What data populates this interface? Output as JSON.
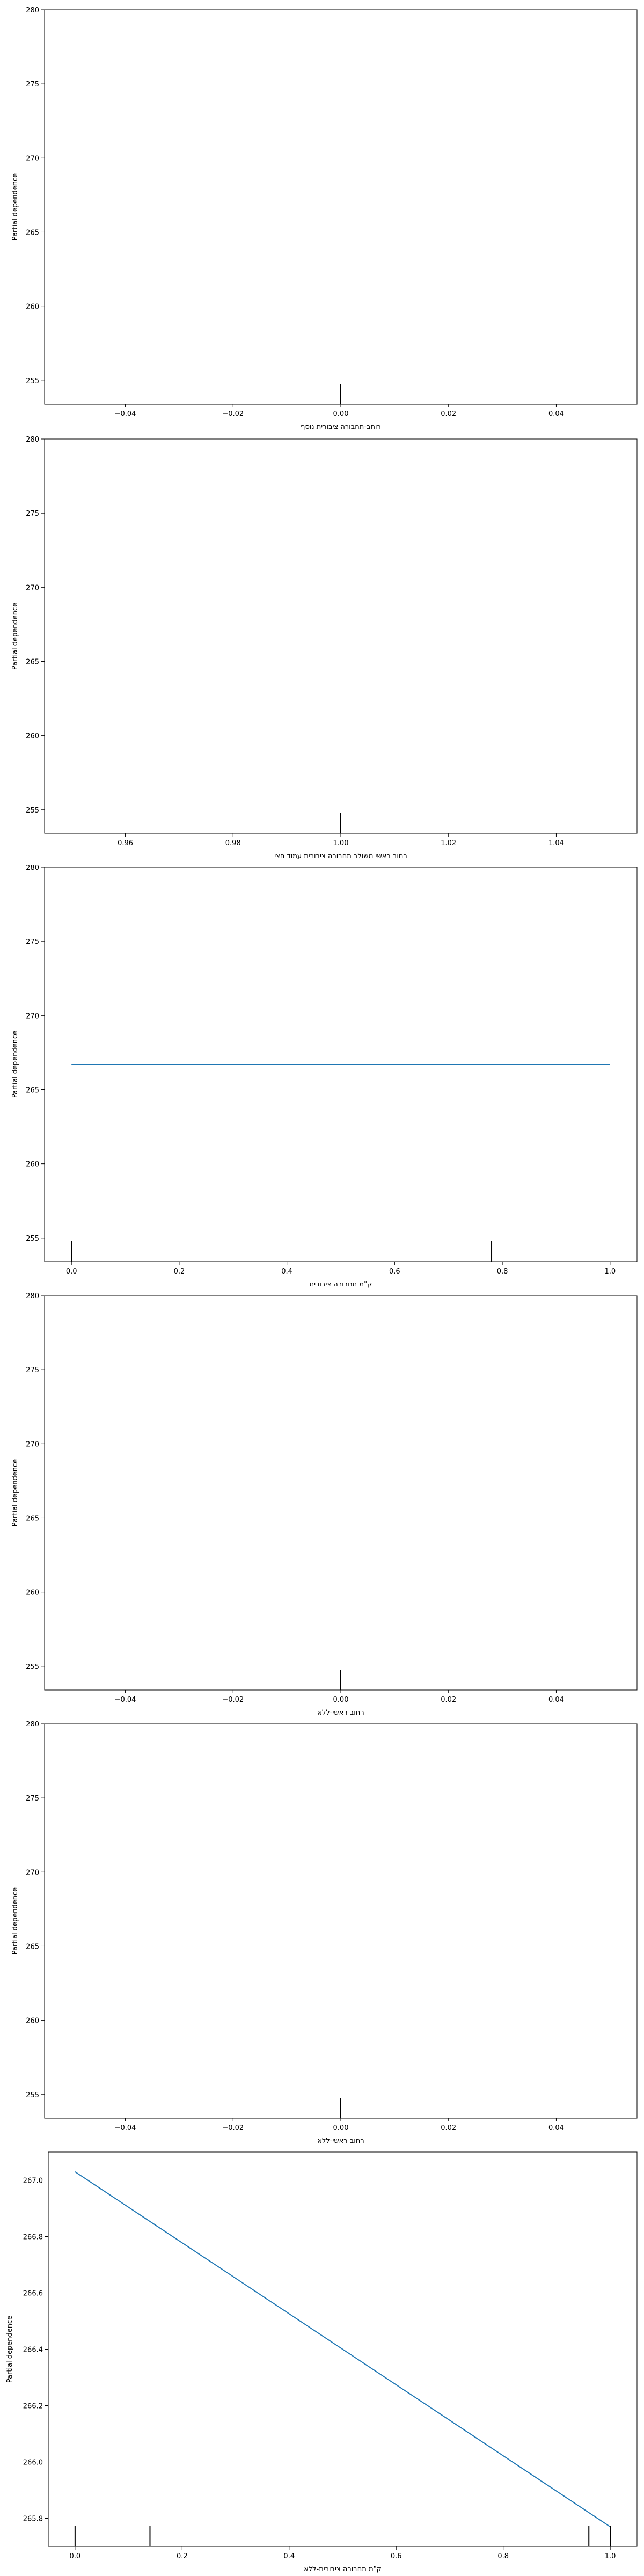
{
  "figure": {
    "background": "#ffffff",
    "line_color": "#1f77b4",
    "rug_color": "#000000"
  },
  "chart_data": [
    {
      "type": "line",
      "xlabel": "רוחב-תחבורה ציבורית נוסף",
      "ylabel": "Partial dependence",
      "xlim": [
        -0.055,
        0.055
      ],
      "ylim": [
        253.4,
        280
      ],
      "xticks": [
        -0.04,
        -0.02,
        0.0,
        0.02,
        0.04
      ],
      "xtick_labels": [
        "−0.04",
        "−0.02",
        "0.00",
        "0.02",
        "0.04"
      ],
      "yticks": [
        255,
        260,
        265,
        270,
        275,
        280
      ],
      "ytick_labels": [
        "255",
        "260",
        "265",
        "270",
        "275",
        "280"
      ],
      "series": [],
      "rug": [
        0.0
      ],
      "grid": false
    },
    {
      "type": "line",
      "xlabel": "רחוב ראשי משולב תחבורה ציבורית עמוד חצי",
      "ylabel": "Partial dependence",
      "xlim": [
        0.945,
        1.055
      ],
      "ylim": [
        253.4,
        280
      ],
      "xticks": [
        0.96,
        0.98,
        1.0,
        1.02,
        1.04
      ],
      "xtick_labels": [
        "0.96",
        "0.98",
        "1.00",
        "1.02",
        "1.04"
      ],
      "yticks": [
        255,
        260,
        265,
        270,
        275,
        280
      ],
      "ytick_labels": [
        "255",
        "260",
        "265",
        "270",
        "275",
        "280"
      ],
      "series": [],
      "rug": [
        1.0
      ],
      "grid": false
    },
    {
      "type": "line",
      "xlabel": "ק\"מ תחבורה ציבורית",
      "ylabel": "Partial dependence",
      "xlim": [
        -0.05,
        1.05
      ],
      "ylim": [
        253.4,
        280
      ],
      "xticks": [
        0.0,
        0.2,
        0.4,
        0.6,
        0.8,
        1.0
      ],
      "xtick_labels": [
        "0.0",
        "0.2",
        "0.4",
        "0.6",
        "0.8",
        "1.0"
      ],
      "yticks": [
        255,
        260,
        265,
        270,
        275,
        280
      ],
      "ytick_labels": [
        "255",
        "260",
        "265",
        "270",
        "275",
        "280"
      ],
      "series": [
        {
          "x": [
            0.0,
            1.0
          ],
          "y": [
            266.7,
            266.7
          ]
        }
      ],
      "rug": [
        0.0,
        0.78
      ],
      "grid": false
    },
    {
      "type": "line",
      "xlabel": "רחוב ראשי-ללא",
      "ylabel": "Partial dependence",
      "xlim": [
        -0.055,
        0.055
      ],
      "ylim": [
        253.4,
        280
      ],
      "xticks": [
        -0.04,
        -0.02,
        0.0,
        0.02,
        0.04
      ],
      "xtick_labels": [
        "−0.04",
        "−0.02",
        "0.00",
        "0.02",
        "0.04"
      ],
      "yticks": [
        255,
        260,
        265,
        270,
        275,
        280
      ],
      "ytick_labels": [
        "255",
        "260",
        "265",
        "270",
        "275",
        "280"
      ],
      "series": [],
      "rug": [
        0.0
      ],
      "grid": false
    },
    {
      "type": "line",
      "xlabel": "רחוב ראשי-ללא",
      "ylabel": "Partial dependence",
      "xlim": [
        -0.055,
        0.055
      ],
      "ylim": [
        253.4,
        280
      ],
      "xticks": [
        -0.04,
        -0.02,
        0.0,
        0.02,
        0.04
      ],
      "xtick_labels": [
        "−0.04",
        "−0.02",
        "0.00",
        "0.02",
        "0.04"
      ],
      "yticks": [
        255,
        260,
        265,
        270,
        275,
        280
      ],
      "ytick_labels": [
        "255",
        "260",
        "265",
        "270",
        "275",
        "280"
      ],
      "series": [],
      "rug": [
        0.0
      ],
      "grid": false
    },
    {
      "type": "line",
      "xlabel": "ק\"מ תחבורה ציבורית-ללא",
      "ylabel": "Partial dependence",
      "xlim": [
        -0.05,
        1.05
      ],
      "ylim": [
        265.7,
        267.1
      ],
      "xticks": [
        0.0,
        0.2,
        0.4,
        0.6,
        0.8,
        1.0
      ],
      "xtick_labels": [
        "0.0",
        "0.2",
        "0.4",
        "0.6",
        "0.8",
        "1.0"
      ],
      "yticks": [
        265.8,
        266.0,
        266.2,
        266.4,
        266.6,
        266.8,
        267.0
      ],
      "ytick_labels": [
        "265.8",
        "266.0",
        "266.2",
        "266.4",
        "266.6",
        "266.8",
        "267.0"
      ],
      "series": [
        {
          "x": [
            0.0,
            1.0
          ],
          "y": [
            267.03,
            265.77
          ]
        }
      ],
      "rug": [
        0.0,
        0.14,
        0.96,
        1.0
      ],
      "grid": false
    }
  ]
}
